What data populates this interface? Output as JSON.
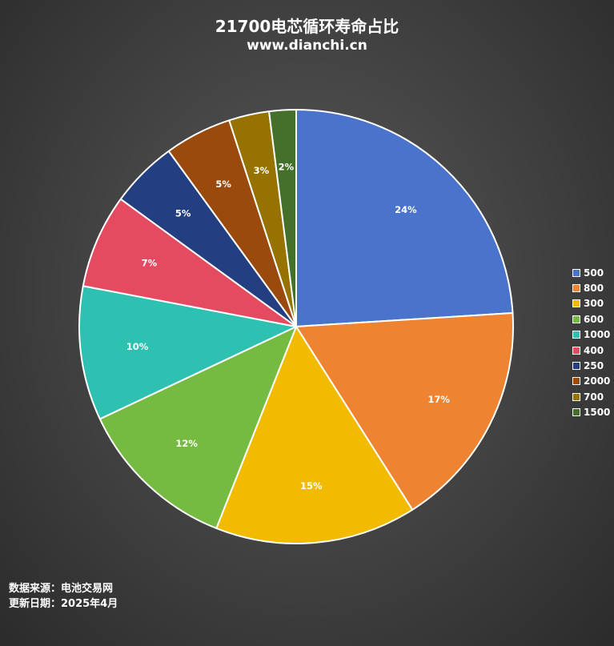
{
  "header": {
    "title": "21700电芯循环寿命占比",
    "subtitle": "www.dianchi.cn"
  },
  "footer": {
    "source": "数据来源：电池交易网",
    "updated": "更新日期：2025年4月"
  },
  "chart_data": {
    "type": "pie",
    "title": "21700电芯循环寿命占比",
    "legend_position": "right",
    "slices": [
      {
        "label": "500",
        "value": 24,
        "display": "24%",
        "color": "#4A74CB"
      },
      {
        "label": "800",
        "value": 17,
        "display": "17%",
        "color": "#EE8332"
      },
      {
        "label": "300",
        "value": 15,
        "display": "15%",
        "color": "#F2BB00"
      },
      {
        "label": "600",
        "value": 12,
        "display": "12%",
        "color": "#76BB41"
      },
      {
        "label": "1000",
        "value": 10,
        "display": "10%",
        "color": "#2EC1B2"
      },
      {
        "label": "400",
        "value": 7,
        "display": "7%",
        "color": "#E54B60"
      },
      {
        "label": "250",
        "value": 5,
        "display": "5%",
        "color": "#233F81"
      },
      {
        "label": "2000",
        "value": 5,
        "display": "5%",
        "color": "#9B4A0D"
      },
      {
        "label": "700",
        "value": 3,
        "display": "3%",
        "color": "#967300"
      },
      {
        "label": "1500",
        "value": 2,
        "display": "2%",
        "color": "#45702A"
      }
    ]
  }
}
